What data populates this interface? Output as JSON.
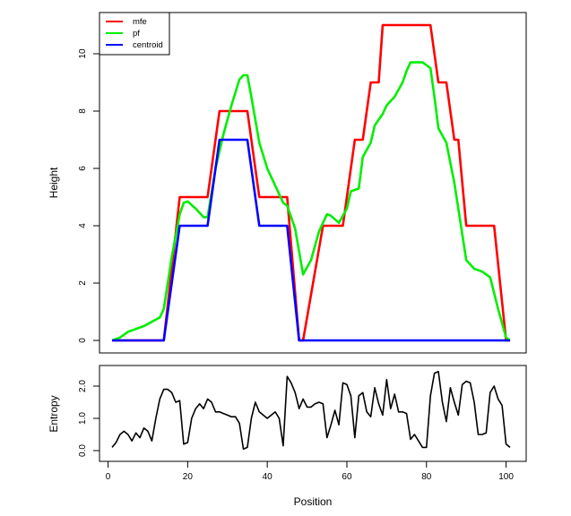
{
  "chart_data": [
    {
      "type": "line",
      "title": "",
      "xlabel": "",
      "ylabel": "Height",
      "xlim": [
        1,
        101
      ],
      "ylim": [
        0,
        11
      ],
      "yticks": [
        0,
        2,
        4,
        6,
        8,
        10
      ],
      "legend": {
        "position": "top-left",
        "entries": [
          "mfe",
          "pf",
          "centroid"
        ]
      },
      "series": [
        {
          "name": "mfe",
          "color": "#ff0000",
          "x": [
            1,
            14,
            18,
            25,
            28,
            35,
            38,
            45,
            48,
            49,
            54,
            59,
            62,
            64,
            66,
            68,
            69,
            81,
            83,
            85,
            87,
            88,
            90,
            94,
            97,
            100,
            101
          ],
          "y": [
            0,
            0,
            5,
            5,
            8,
            8,
            5,
            5,
            0,
            0,
            4,
            4,
            7,
            7,
            9,
            9,
            11,
            11,
            9,
            9,
            7,
            7,
            4,
            4,
            4,
            0,
            0
          ]
        },
        {
          "name": "pf",
          "color": "#00ee00",
          "x": [
            1,
            3,
            5,
            7,
            9,
            11,
            13,
            14,
            16,
            18,
            19,
            20,
            22,
            24,
            25,
            27,
            29,
            31,
            33,
            34,
            35,
            36,
            38,
            40,
            42,
            44,
            45,
            47,
            49,
            51,
            53,
            55,
            56,
            58,
            60,
            61,
            63,
            64,
            66,
            67,
            69,
            70,
            72,
            74,
            75,
            76,
            78,
            79,
            81,
            82,
            83,
            85,
            86,
            87,
            89,
            90,
            92,
            94,
            96,
            98,
            100,
            101
          ],
          "y": [
            0,
            0.1,
            0.3,
            0.4,
            0.5,
            0.65,
            0.8,
            1.1,
            2.9,
            4.4,
            4.8,
            4.85,
            4.6,
            4.3,
            4.3,
            6.0,
            7.2,
            8.2,
            9.1,
            9.25,
            9.25,
            8.5,
            6.9,
            6.0,
            5.4,
            4.8,
            4.7,
            3.9,
            2.3,
            2.8,
            3.8,
            4.4,
            4.35,
            4.1,
            4.6,
            5.2,
            5.3,
            6.4,
            6.9,
            7.5,
            7.9,
            8.2,
            8.5,
            9.0,
            9.4,
            9.7,
            9.7,
            9.7,
            9.5,
            8.5,
            7.4,
            6.9,
            6.2,
            5.5,
            3.7,
            2.8,
            2.5,
            2.4,
            2.2,
            1.1,
            0.1,
            0
          ]
        },
        {
          "name": "centroid",
          "color": "#0000ff",
          "x": [
            1,
            14,
            18,
            25,
            28,
            35,
            38,
            45,
            48,
            101
          ],
          "y": [
            0,
            0,
            4,
            4,
            7,
            7,
            4,
            4,
            0,
            0
          ]
        }
      ]
    },
    {
      "type": "line",
      "title": "",
      "xlabel": "Position",
      "ylabel": "Entropy",
      "xlim": [
        1,
        101
      ],
      "ylim": [
        0,
        2.5
      ],
      "xticks": [
        0,
        20,
        40,
        60,
        80,
        100
      ],
      "yticks": [
        0.0,
        1.0,
        2.0
      ],
      "ytick_labels": [
        "0.0",
        "1.0",
        "2.0"
      ],
      "series": [
        {
          "name": "entropy",
          "color": "#000000",
          "x": [
            1,
            2,
            3,
            4,
            5,
            6,
            7,
            8,
            9,
            10,
            11,
            12,
            13,
            14,
            15,
            16,
            17,
            18,
            19,
            20,
            21,
            22,
            23,
            24,
            25,
            26,
            27,
            28,
            29,
            30,
            31,
            32,
            33,
            34,
            35,
            36,
            37,
            38,
            39,
            40,
            41,
            42,
            43,
            44,
            45,
            46,
            47,
            48,
            49,
            50,
            51,
            52,
            53,
            54,
            55,
            56,
            57,
            58,
            59,
            60,
            61,
            62,
            63,
            64,
            65,
            66,
            67,
            68,
            69,
            70,
            71,
            72,
            73,
            74,
            75,
            76,
            77,
            78,
            79,
            80,
            81,
            82,
            83,
            84,
            85,
            86,
            87,
            88,
            89,
            90,
            91,
            92,
            93,
            94,
            95,
            96,
            97,
            98,
            99,
            100,
            101
          ],
          "y": [
            0.1,
            0.25,
            0.5,
            0.6,
            0.5,
            0.3,
            0.55,
            0.4,
            0.7,
            0.6,
            0.3,
            1.0,
            1.6,
            1.9,
            1.9,
            1.8,
            1.5,
            1.55,
            0.2,
            0.25,
            1.0,
            1.3,
            1.45,
            1.3,
            1.6,
            1.5,
            1.2,
            1.2,
            1.15,
            1.1,
            1.05,
            1.05,
            0.85,
            0.05,
            0.1,
            1.0,
            1.5,
            1.2,
            1.1,
            1.0,
            1.1,
            1.2,
            1.0,
            0.15,
            2.3,
            2.1,
            1.8,
            1.3,
            1.6,
            1.35,
            1.35,
            1.45,
            1.5,
            1.45,
            0.4,
            0.8,
            1.25,
            0.8,
            2.1,
            2.05,
            1.7,
            0.4,
            1.7,
            1.8,
            1.2,
            1.05,
            1.95,
            1.45,
            1.1,
            2.2,
            1.3,
            1.75,
            1.2,
            1.2,
            1.15,
            0.35,
            0.5,
            0.3,
            0.1,
            0.1,
            1.7,
            2.4,
            2.45,
            1.5,
            0.9,
            1.95,
            1.5,
            1.1,
            2.05,
            2.15,
            2.1,
            1.5,
            0.5,
            0.5,
            0.55,
            1.8,
            2.0,
            1.6,
            1.4,
            0.2,
            0.1
          ]
        }
      ]
    }
  ]
}
